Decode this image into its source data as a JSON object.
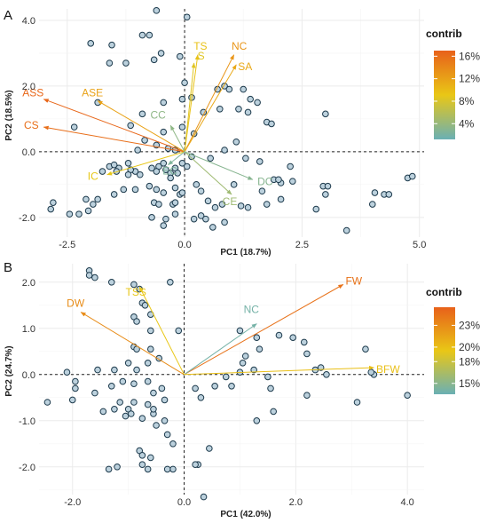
{
  "chart_data": [
    {
      "panel": "A",
      "type": "biplot",
      "xlabel": "PC1 (18.7%)",
      "ylabel": "PC2 (18.5%)",
      "xlim": [
        -3.1,
        5.1
      ],
      "ylim": [
        -2.6,
        4.35
      ],
      "xticks": [
        -2.5,
        0.0,
        2.5,
        5.0
      ],
      "xtick_labels": [
        "-2.5",
        "0.0",
        "2.5",
        "5.0"
      ],
      "yticks": [
        -2.0,
        0.0,
        2.0,
        4.0
      ],
      "ytick_labels": [
        "-2.0",
        "0.0",
        "2.0",
        "4.0"
      ],
      "grid": true,
      "legend": {
        "title": "contrib",
        "position": "right",
        "ticks": [
          "16%",
          "12%",
          "8%",
          "4%"
        ],
        "tick_values": [
          16,
          12,
          8,
          4
        ],
        "range": [
          1.2,
          17
        ],
        "colors": [
          "#e8611a",
          "#e9c716",
          "#6ab0b4"
        ]
      },
      "points": [
        [
          -0.6,
          4.3
        ],
        [
          0.05,
          4.1
        ],
        [
          -0.9,
          3.55
        ],
        [
          -0.75,
          3.55
        ],
        [
          -0.5,
          3.0
        ],
        [
          -0.65,
          2.8
        ],
        [
          -0.1,
          2.9
        ],
        [
          0.0,
          2.1
        ],
        [
          -0.45,
          1.5
        ],
        [
          -0.9,
          1.15
        ],
        [
          -0.05,
          1.6
        ],
        [
          0.15,
          1.65
        ],
        [
          0.7,
          1.9
        ],
        [
          0.85,
          2.0
        ],
        [
          0.95,
          1.9
        ],
        [
          1.25,
          1.9
        ],
        [
          1.4,
          1.6
        ],
        [
          1.15,
          1.3
        ],
        [
          1.35,
          1.2
        ],
        [
          1.55,
          1.5
        ],
        [
          0.75,
          1.3
        ],
        [
          0.4,
          1.2
        ],
        [
          1.75,
          0.9
        ],
        [
          1.85,
          0.85
        ],
        [
          3.0,
          1.15
        ],
        [
          -0.45,
          0.6
        ],
        [
          -0.05,
          0.75
        ],
        [
          0.2,
          0.55
        ],
        [
          -1.05,
          -0.6
        ],
        [
          -1.15,
          -0.55
        ],
        [
          -1.2,
          -0.7
        ],
        [
          -0.95,
          -0.7
        ],
        [
          -0.7,
          -0.5
        ],
        [
          -0.55,
          -0.45
        ],
        [
          -0.6,
          -0.6
        ],
        [
          -0.45,
          -0.35
        ],
        [
          -0.4,
          -0.55
        ],
        [
          -0.3,
          -0.65
        ],
        [
          -0.3,
          -0.8
        ],
        [
          -0.2,
          -0.5
        ],
        [
          -0.15,
          -0.65
        ],
        [
          -0.05,
          -0.35
        ],
        [
          0.05,
          -0.45
        ],
        [
          -0.75,
          -1.05
        ],
        [
          -0.6,
          -1.15
        ],
        [
          -0.45,
          -1.25
        ],
        [
          -0.2,
          -1.1
        ],
        [
          -0.1,
          -1.3
        ],
        [
          -0.05,
          -1.25
        ],
        [
          0.25,
          -1.0
        ],
        [
          0.35,
          -1.2
        ],
        [
          -0.65,
          -1.55
        ],
        [
          -0.55,
          -1.6
        ],
        [
          -0.25,
          -1.6
        ],
        [
          -0.2,
          -1.55
        ],
        [
          -0.45,
          -2.25
        ],
        [
          -0.2,
          -1.9
        ],
        [
          -0.4,
          -2.05
        ],
        [
          0.2,
          -2.05
        ],
        [
          0.35,
          -1.95
        ],
        [
          0.45,
          -2.05
        ],
        [
          0.5,
          -1.5
        ],
        [
          0.65,
          -1.7
        ],
        [
          0.8,
          -1.6
        ],
        [
          1.2,
          -1.65
        ],
        [
          1.35,
          -1.7
        ],
        [
          0.85,
          -2.15
        ],
        [
          0.6,
          -2.3
        ],
        [
          1.65,
          -1.2
        ],
        [
          1.75,
          -1.6
        ],
        [
          2.05,
          -1.45
        ],
        [
          1.9,
          -0.85
        ],
        [
          2.05,
          -0.95
        ],
        [
          2.3,
          -0.9
        ],
        [
          2.8,
          -1.75
        ],
        [
          2.95,
          -1.05
        ],
        [
          3.05,
          -1.05
        ],
        [
          3.45,
          -2.4
        ],
        [
          3.0,
          -1.3
        ],
        [
          4.0,
          -1.6
        ],
        [
          4.05,
          -1.25
        ],
        [
          4.25,
          -1.3
        ],
        [
          4.35,
          -1.3
        ],
        [
          4.75,
          -0.8
        ],
        [
          4.85,
          -0.75
        ],
        [
          -1.85,
          -1.45
        ],
        [
          -1.95,
          -1.6
        ],
        [
          -2.1,
          -1.45
        ],
        [
          -1.75,
          -0.6
        ],
        [
          -1.6,
          -0.45
        ],
        [
          -1.4,
          -0.5
        ],
        [
          -1.45,
          -0.6
        ],
        [
          -1.2,
          -0.35
        ],
        [
          -2.25,
          -1.9
        ],
        [
          -2.05,
          -1.8
        ],
        [
          -1.5,
          -1.3
        ],
        [
          -1.3,
          -1.15
        ],
        [
          -1.05,
          -1.15
        ],
        [
          -0.7,
          -2.0
        ],
        [
          -2.8,
          -1.55
        ],
        [
          -2.85,
          -1.75
        ],
        [
          -2.45,
          -1.9
        ],
        [
          -1.85,
          1.5
        ],
        [
          -1.6,
          2.7
        ],
        [
          -1.55,
          3.25
        ],
        [
          -2.0,
          3.3
        ],
        [
          -1.25,
          2.7
        ],
        [
          -2.35,
          0.75
        ],
        [
          -1.15,
          0.8
        ],
        [
          -0.85,
          0.35
        ],
        [
          -1.5,
          -0.4
        ],
        [
          -1.0,
          0.05
        ],
        [
          -0.6,
          0.2
        ],
        [
          -0.35,
          0.1
        ],
        [
          0.85,
          0.05
        ],
        [
          1.1,
          0.3
        ],
        [
          2.0,
          -0.85
        ],
        [
          1.05,
          -1.0
        ],
        [
          1.3,
          -0.2
        ],
        [
          1.6,
          -0.3
        ],
        [
          2.25,
          -0.45
        ],
        [
          0.55,
          -0.2
        ],
        [
          0.15,
          -0.15
        ],
        [
          -0.2,
          0.05
        ]
      ],
      "vectors": [
        {
          "name": "TS",
          "x": 0.28,
          "y": 2.95,
          "contrib": 9.5
        },
        {
          "name": "S",
          "x": 0.2,
          "y": 2.7,
          "contrib": 8.5
        },
        {
          "name": "NC",
          "x": 1.05,
          "y": 2.95,
          "contrib": 13.0
        },
        {
          "name": "SA",
          "x": 1.1,
          "y": 2.65,
          "contrib": 11.5
        },
        {
          "name": "ASS",
          "x": -3.0,
          "y": 1.6,
          "contrib": 16.5
        },
        {
          "name": "ASE",
          "x": -1.85,
          "y": 1.55,
          "contrib": 12.0
        },
        {
          "name": "CS",
          "x": -3.0,
          "y": 0.75,
          "contrib": 16.0
        },
        {
          "name": "CC",
          "x": -0.3,
          "y": 0.8,
          "contrib": 3.5
        },
        {
          "name": "IC",
          "x": -1.65,
          "y": -0.7,
          "contrib": 9.0
        },
        {
          "name": "EC",
          "x": -0.35,
          "y": -0.4,
          "contrib": 2.5
        },
        {
          "name": "CE",
          "x": 1.0,
          "y": -1.3,
          "contrib": 4.5
        },
        {
          "name": "DC",
          "x": 1.45,
          "y": -0.85,
          "contrib": 3.0
        }
      ]
    },
    {
      "panel": "B",
      "type": "biplot",
      "xlabel": "PC1 (42.0%)",
      "ylabel": "PC2 (24.7%)",
      "xlim": [
        -2.6,
        4.3
      ],
      "ylim": [
        -2.6,
        2.4
      ],
      "xticks": [
        -2.0,
        0.0,
        2.0,
        4.0
      ],
      "xtick_labels": [
        "-2.0",
        "0.0",
        "2.0",
        "4.0"
      ],
      "yticks": [
        -2.0,
        -1.0,
        0.0,
        1.0,
        2.0
      ],
      "ytick_labels": [
        "-2.0",
        "-1.0",
        "0.0",
        "1.0",
        "2.0"
      ],
      "grid": true,
      "legend": {
        "title": "contrib",
        "position": "right",
        "ticks": [
          "23%",
          "20%",
          "18%",
          "15%"
        ],
        "tick_values": [
          23,
          20,
          18,
          15
        ],
        "range": [
          13.5,
          25.5
        ],
        "colors": [
          "#e8611a",
          "#e9c716",
          "#6ab0b4"
        ]
      },
      "points": [
        [
          -1.7,
          2.25
        ],
        [
          -1.7,
          2.15
        ],
        [
          -1.6,
          2.1
        ],
        [
          -1.3,
          2.0
        ],
        [
          -0.9,
          1.95
        ],
        [
          -0.8,
          1.85
        ],
        [
          -0.75,
          1.55
        ],
        [
          -0.7,
          1.5
        ],
        [
          -0.9,
          1.25
        ],
        [
          -0.85,
          1.15
        ],
        [
          -0.6,
          1.3
        ],
        [
          -0.6,
          0.95
        ],
        [
          -0.1,
          0.95
        ],
        [
          -0.9,
          0.6
        ],
        [
          -0.85,
          0.55
        ],
        [
          -0.6,
          0.55
        ],
        [
          -0.45,
          0.35
        ],
        [
          -0.65,
          0.25
        ],
        [
          -0.85,
          0.1
        ],
        [
          -1.0,
          0.25
        ],
        [
          -1.25,
          0.1
        ],
        [
          -1.55,
          0.1
        ],
        [
          -2.1,
          0.05
        ],
        [
          -1.95,
          -0.15
        ],
        [
          -1.95,
          -0.3
        ],
        [
          -2.0,
          -0.55
        ],
        [
          -1.6,
          -0.4
        ],
        [
          -1.3,
          -0.25
        ],
        [
          -1.1,
          -0.15
        ],
        [
          -0.9,
          -0.2
        ],
        [
          -0.65,
          -0.15
        ],
        [
          -0.55,
          -0.4
        ],
        [
          -0.4,
          -0.3
        ],
        [
          -0.35,
          -0.55
        ],
        [
          -0.65,
          -0.65
        ],
        [
          -0.9,
          -0.6
        ],
        [
          -1.0,
          -0.75
        ],
        [
          -1.15,
          -0.6
        ],
        [
          -1.25,
          -0.75
        ],
        [
          -1.45,
          -0.8
        ],
        [
          -1.05,
          -0.9
        ],
        [
          -0.95,
          -0.85
        ],
        [
          -0.75,
          -0.95
        ],
        [
          -0.55,
          -0.85
        ],
        [
          -0.5,
          -1.1
        ],
        [
          -0.35,
          -1.0
        ],
        [
          -0.3,
          -1.3
        ],
        [
          -0.2,
          -1.5
        ],
        [
          -0.8,
          -1.65
        ],
        [
          -0.75,
          -1.75
        ],
        [
          -0.6,
          -1.8
        ],
        [
          -0.75,
          -1.95
        ],
        [
          -0.65,
          -2.05
        ],
        [
          -0.2,
          -2.05
        ],
        [
          0.25,
          -1.95
        ],
        [
          0.45,
          -1.6
        ],
        [
          0.3,
          -0.5
        ],
        [
          0.55,
          -0.25
        ],
        [
          0.75,
          -0.05
        ],
        [
          0.85,
          -0.25
        ],
        [
          1.0,
          0.05
        ],
        [
          1.05,
          0.25
        ],
        [
          1.25,
          0.1
        ],
        [
          1.3,
          0.8
        ],
        [
          1.35,
          0.55
        ],
        [
          1.0,
          0.95
        ],
        [
          1.1,
          0.4
        ],
        [
          1.55,
          -0.3
        ],
        [
          1.6,
          -0.8
        ],
        [
          1.95,
          0.8
        ],
        [
          2.15,
          0.7
        ],
        [
          2.35,
          0.1
        ],
        [
          2.2,
          -0.45
        ],
        [
          2.45,
          0.15
        ],
        [
          2.55,
          0.0
        ],
        [
          3.25,
          0.55
        ],
        [
          3.4,
          0.0
        ],
        [
          3.35,
          0.05
        ],
        [
          3.1,
          -0.6
        ],
        [
          4.0,
          -0.45
        ],
        [
          -2.45,
          -0.6
        ],
        [
          -1.35,
          -2.05
        ],
        [
          -1.2,
          -2.0
        ],
        [
          -0.3,
          -2.05
        ],
        [
          0.35,
          -2.65
        ],
        [
          0.2,
          -1.95
        ],
        [
          -0.25,
          2.0
        ],
        [
          -0.55,
          -0.75
        ],
        [
          0.2,
          -0.3
        ],
        [
          1.7,
          0.85
        ],
        [
          1.5,
          -0.05
        ],
        [
          2.2,
          0.45
        ],
        [
          1.3,
          -1.0
        ]
      ],
      "vectors": [
        {
          "name": "FW",
          "x": 2.85,
          "y": 1.95,
          "contrib": 24.5
        },
        {
          "name": "DW",
          "x": -1.85,
          "y": 1.35,
          "contrib": 23.0
        },
        {
          "name": "TSS",
          "x": -0.8,
          "y": 1.9,
          "contrib": 19.5
        },
        {
          "name": "NC",
          "x": 1.3,
          "y": 1.1,
          "contrib": 14.0
        },
        {
          "name": "BFW",
          "x": 3.4,
          "y": 0.15,
          "contrib": 20.0
        }
      ]
    }
  ]
}
